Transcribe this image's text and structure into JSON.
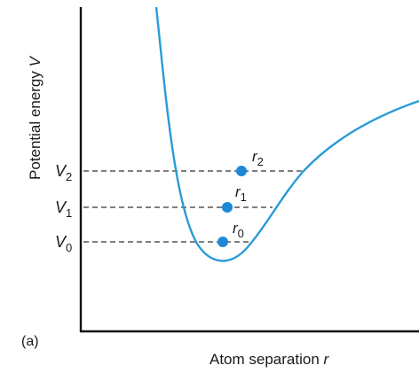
{
  "figure": {
    "panel_label": "(a)",
    "y_axis": {
      "title": "Potential energy",
      "symbol": "V"
    },
    "x_axis": {
      "title": "Atom separation",
      "symbol": "r"
    },
    "levels": [
      {
        "v_symbol": "V",
        "v_sub": "0",
        "r_symbol": "r",
        "r_sub": "0"
      },
      {
        "v_symbol": "V",
        "v_sub": "1",
        "r_symbol": "r",
        "r_sub": "1"
      },
      {
        "v_symbol": "V",
        "v_sub": "2",
        "r_symbol": "r",
        "r_sub": "2"
      }
    ]
  },
  "colors": {
    "curve": "#2a9bd8",
    "points": "#1e88d6",
    "axes": "#111111",
    "dashes": "#333333",
    "text": "#1a1a1a"
  }
}
